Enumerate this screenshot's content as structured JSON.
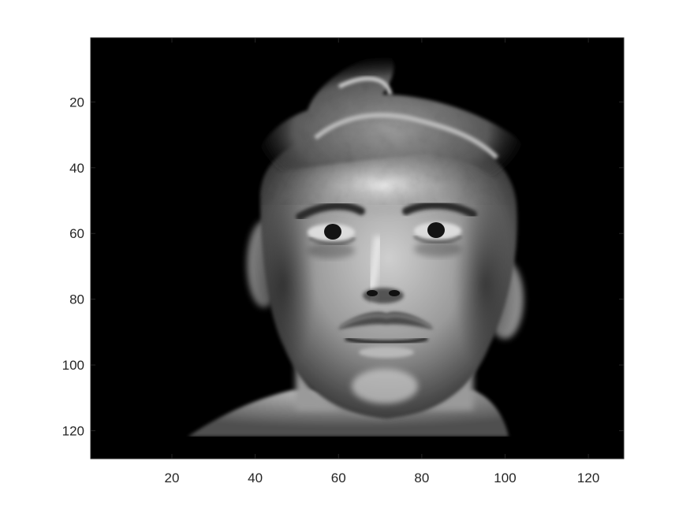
{
  "chart_data": {
    "type": "heatmap",
    "colormap": "gray",
    "title": "",
    "xlabel": "",
    "ylabel": "",
    "xlim": [
      0.5,
      128.5
    ],
    "ylim": [
      0.5,
      128.5
    ],
    "y_direction": "reverse",
    "xticks": [
      20,
      40,
      60,
      80,
      100,
      120
    ],
    "yticks": [
      20,
      40,
      60,
      80,
      100,
      120
    ],
    "grid": false,
    "image_content": "grayscale face image (man with mustache) on black background"
  },
  "colors": {
    "background": "#ffffff",
    "axes_frame": "#262626",
    "image_background": "#000000"
  }
}
